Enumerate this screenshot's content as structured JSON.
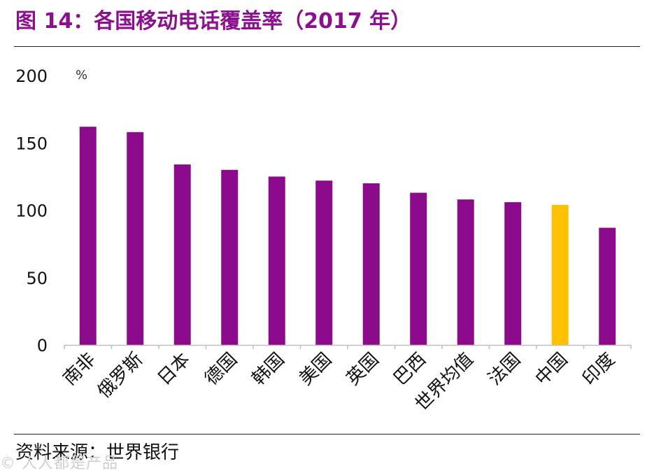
{
  "header": {
    "title": "图 14：各国移动电话覆盖率（2017 年）",
    "title_color": "#8B0F8F"
  },
  "chart_data": {
    "type": "bar",
    "title": "图 14：各国移动电话覆盖率（2017 年）",
    "ylabel": "%",
    "xlabel": "",
    "ylim": [
      0,
      200
    ],
    "yticks": [
      0,
      50,
      100,
      150,
      200
    ],
    "grid": false,
    "categories": [
      "南非",
      "俄罗斯",
      "日本",
      "德国",
      "韩国",
      "美国",
      "英国",
      "巴西",
      "世界均值",
      "法国",
      "中国",
      "印度"
    ],
    "values": [
      162,
      158,
      134,
      130,
      125,
      122,
      120,
      113,
      108,
      106,
      104,
      87
    ],
    "colors": [
      "#8B0A8C",
      "#8B0A8C",
      "#8B0A8C",
      "#8B0A8C",
      "#8B0A8C",
      "#8B0A8C",
      "#8B0A8C",
      "#8B0A8C",
      "#8B0A8C",
      "#8B0A8C",
      "#FFC000",
      "#8B0A8C"
    ],
    "highlight": "中国"
  },
  "footer": {
    "source_label": "资料来源：",
    "source_value": "世界银行",
    "watermark": "© 人人都是产品"
  },
  "colors": {
    "bar": "#8B0A8C",
    "highlight": "#FFC000",
    "axis": "#BFBFBF"
  }
}
